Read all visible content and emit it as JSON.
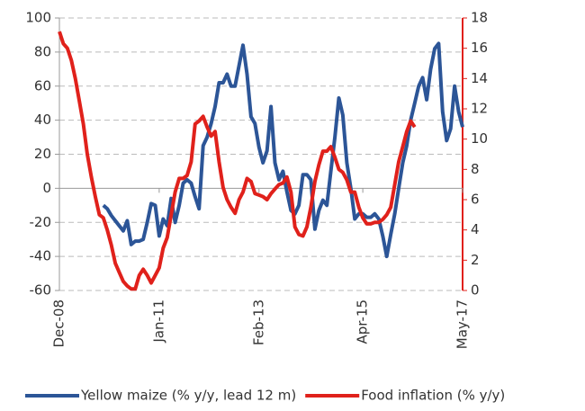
{
  "chart_data": {
    "type": "line",
    "categories": [
      "Dec-08",
      null,
      null,
      null,
      null,
      null,
      null,
      null,
      null,
      null,
      null,
      null,
      null,
      null,
      null,
      null,
      null,
      null,
      null,
      null,
      null,
      null,
      null,
      null,
      null,
      "Jan-11",
      null,
      null,
      null,
      null,
      null,
      null,
      null,
      null,
      null,
      null,
      null,
      null,
      null,
      null,
      null,
      null,
      null,
      null,
      null,
      null,
      null,
      null,
      null,
      null,
      "Feb-13",
      null,
      null,
      null,
      null,
      null,
      null,
      null,
      null,
      null,
      null,
      null,
      null,
      null,
      null,
      null,
      null,
      null,
      null,
      null,
      null,
      null,
      null,
      null,
      null,
      null,
      "Apr-15",
      null,
      null,
      null,
      null,
      null,
      null,
      null,
      null,
      null,
      null,
      null,
      null,
      null,
      null,
      null,
      null,
      null,
      null,
      null,
      null,
      null,
      null,
      null,
      null,
      "May-17"
    ],
    "series": [
      {
        "name": "Yellow maize (% y/y, lead 12 m)",
        "color": "#2c5597",
        "axis": "y",
        "values": [
          null,
          null,
          null,
          null,
          null,
          null,
          null,
          null,
          null,
          null,
          null,
          -10,
          -12,
          -16,
          -19,
          -22,
          -25,
          -19,
          -33,
          -31,
          -31,
          -30,
          -20,
          -9,
          -10,
          -28,
          -18,
          -22,
          -6,
          -20,
          -10,
          3,
          5,
          3,
          -5,
          -12,
          25,
          30,
          38,
          48,
          62,
          62,
          67,
          60,
          60,
          72,
          84,
          67,
          42,
          38,
          24,
          15,
          22,
          48,
          15,
          5,
          10,
          -2,
          -13,
          -15,
          -10,
          8,
          8,
          5,
          -24,
          -13,
          -7,
          -10,
          10,
          30,
          53,
          43,
          15,
          0,
          -18,
          -15,
          -15,
          -17,
          -17,
          -15,
          -18,
          -28,
          -40,
          -27,
          -15,
          0,
          15,
          25,
          40,
          50,
          60,
          65,
          52,
          70,
          82,
          85,
          45,
          28,
          35,
          60,
          45,
          36
        ]
      },
      {
        "name": "Food inflation (% y/y)",
        "color": "#e0211b",
        "axis": "y2",
        "values": [
          17.1,
          16.3,
          16.0,
          15.2,
          14.0,
          12.5,
          11.0,
          9.0,
          7.5,
          6.2,
          5.0,
          4.8,
          4.0,
          3.0,
          1.8,
          1.2,
          0.6,
          0.3,
          0.1,
          0.1,
          1.0,
          1.4,
          1.0,
          0.5,
          1.0,
          1.5,
          2.8,
          3.5,
          5.0,
          6.5,
          7.4,
          7.4,
          7.6,
          8.5,
          11.0,
          11.2,
          11.5,
          10.8,
          10.2,
          10.5,
          8.5,
          6.8,
          6.0,
          5.5,
          5.1,
          6.0,
          6.5,
          7.4,
          7.2,
          6.4,
          6.3,
          6.2,
          6.0,
          6.4,
          6.7,
          7.0,
          7.1,
          7.5,
          6.5,
          4.2,
          3.7,
          3.6,
          4.2,
          5.5,
          7.2,
          8.3,
          9.2,
          9.2,
          9.5,
          8.8,
          8.0,
          7.8,
          7.3,
          6.5,
          6.5,
          5.5,
          4.8,
          4.4,
          4.4,
          4.5,
          4.5,
          4.7,
          5.0,
          5.5,
          7.0,
          8.5,
          9.5,
          10.5,
          11.2,
          10.8,
          null,
          null,
          null,
          null,
          null,
          null,
          null,
          null,
          null,
          null,
          null,
          null
        ]
      }
    ],
    "ylim": [
      -60,
      100
    ],
    "yticks": [
      -60,
      -40,
      -20,
      0,
      20,
      40,
      60,
      80,
      100
    ],
    "y2lim": [
      0,
      18
    ],
    "y2ticks": [
      0,
      2,
      4,
      6,
      8,
      10,
      12,
      14,
      16,
      18
    ],
    "grid": true,
    "legend": "bottom"
  }
}
